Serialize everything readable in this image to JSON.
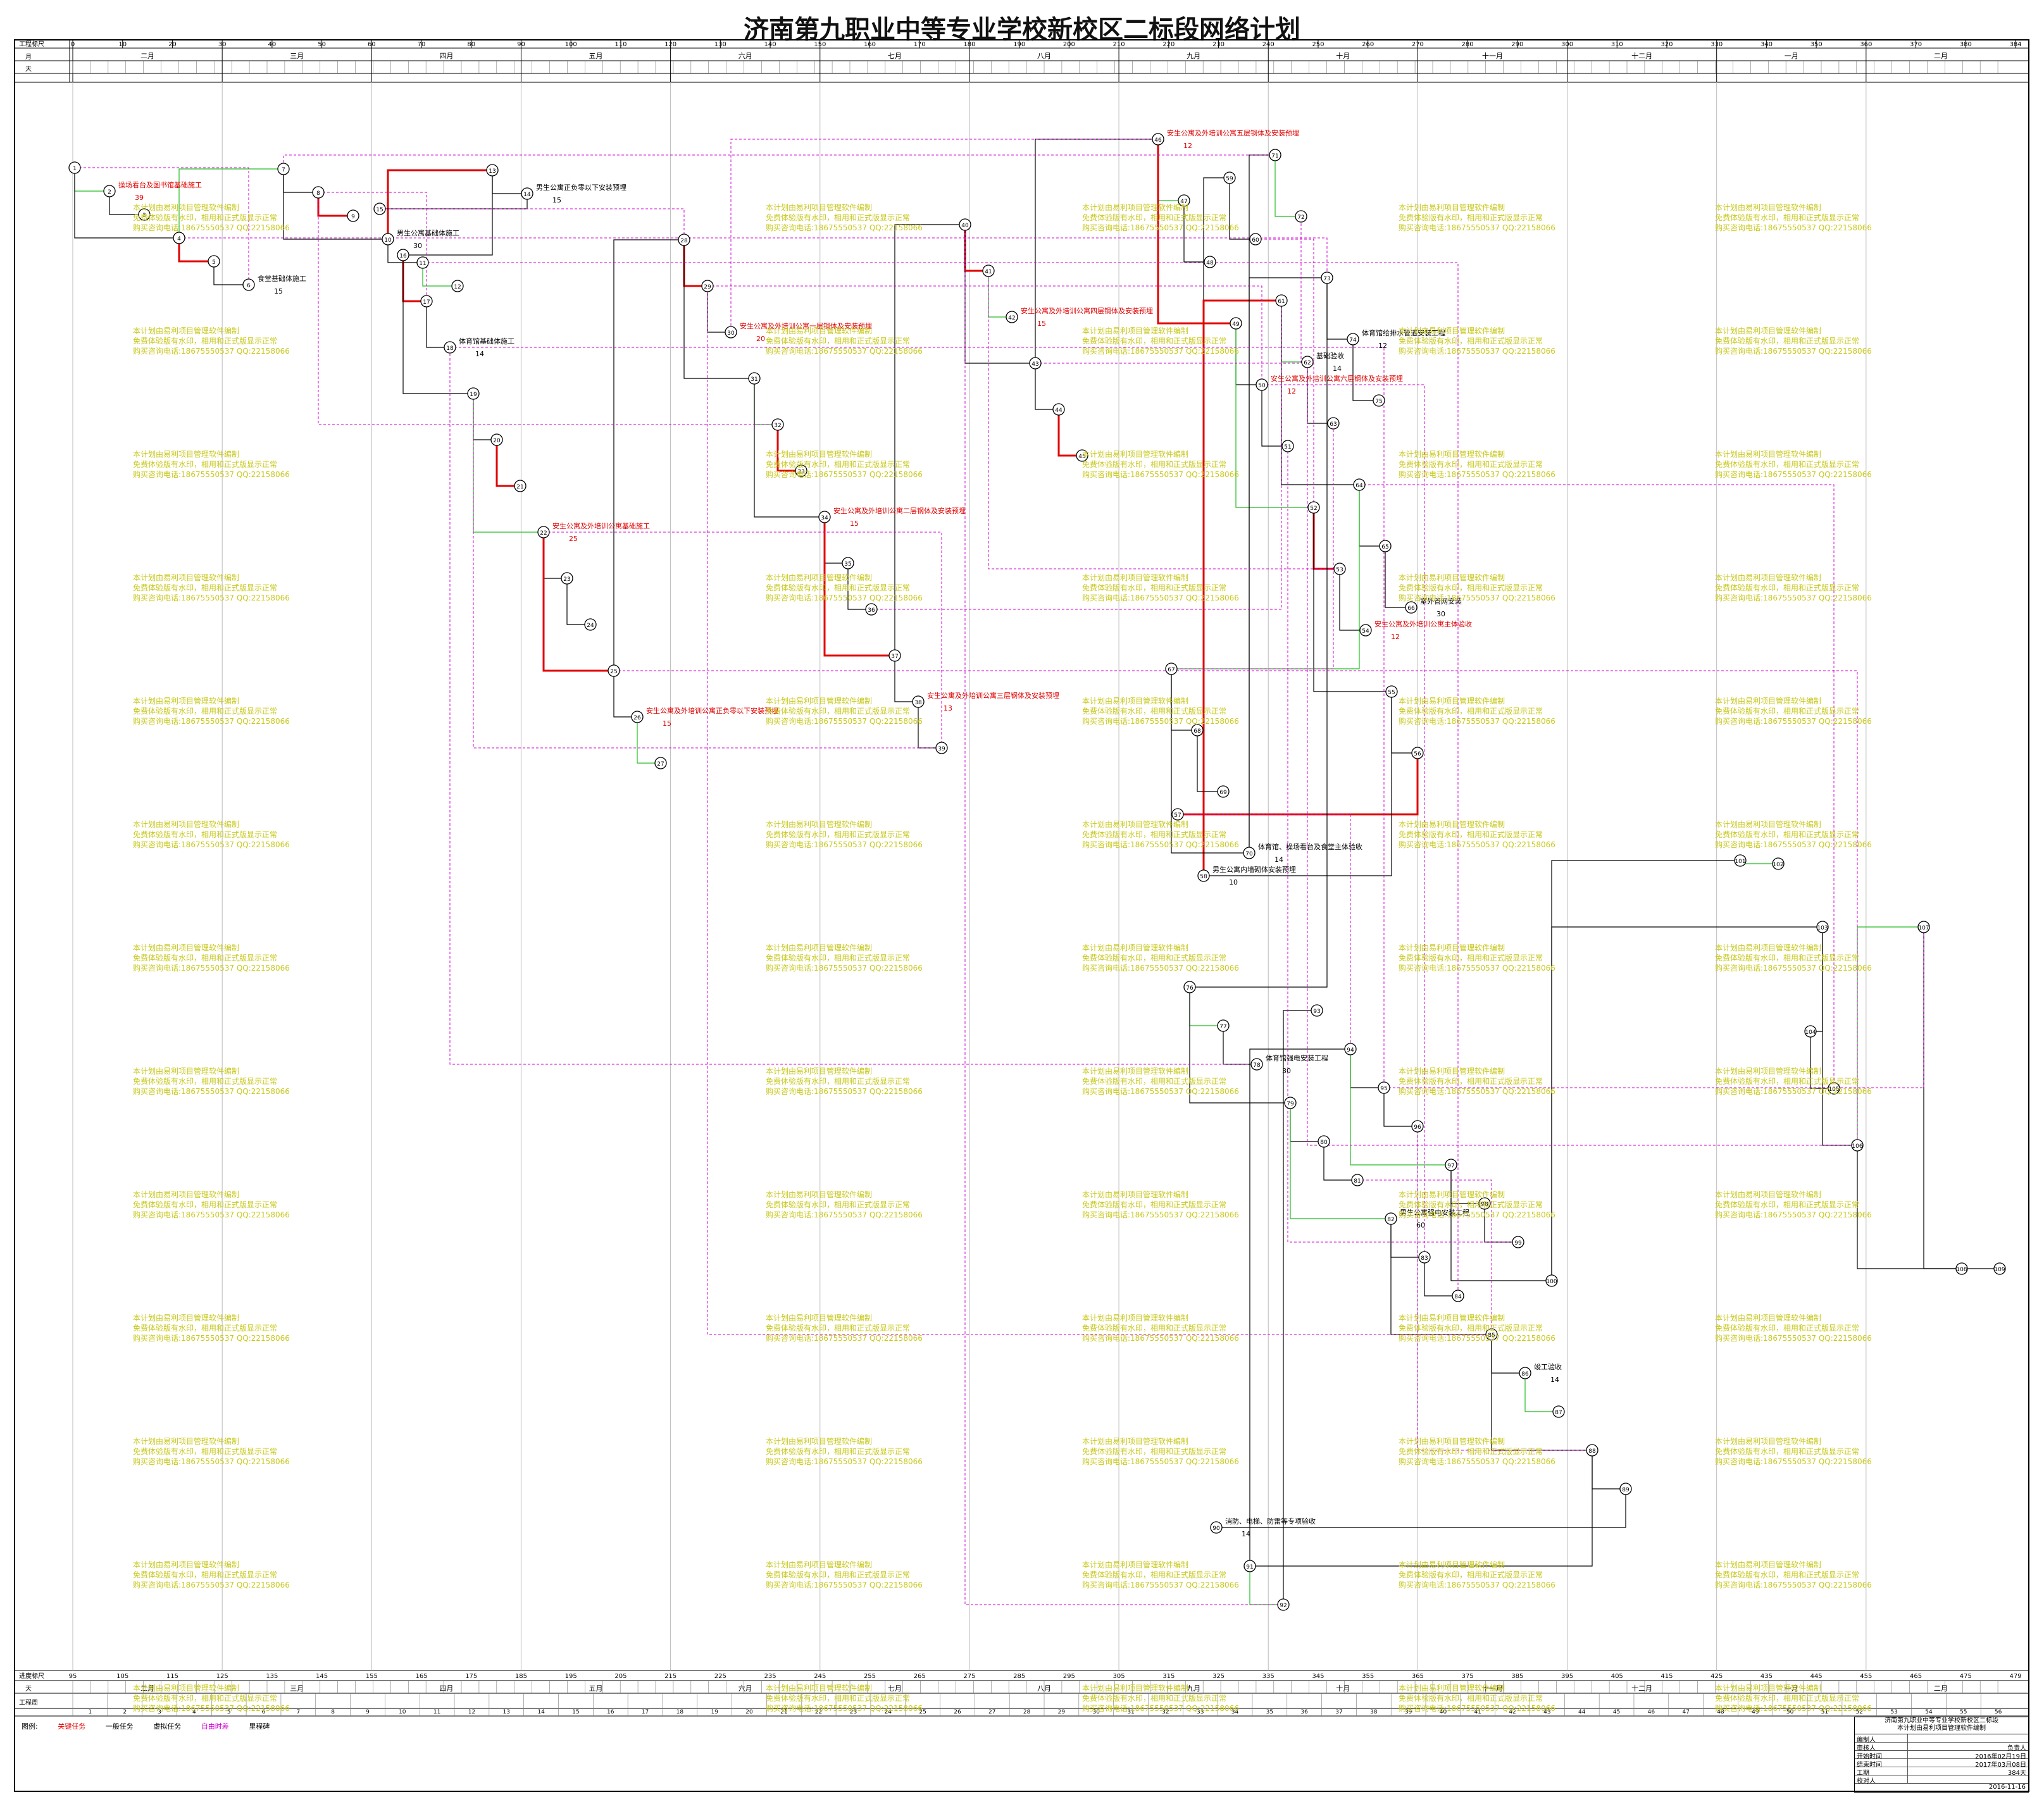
{
  "title": "济南第九职业中等专业学校新校区二标段网络计划",
  "scale": {
    "label_top": "工程标尺",
    "label_month": "月",
    "label_day": "天",
    "label_bottom": "进度标尺",
    "label_day_bottom": "天",
    "label_week": "工程周",
    "ticks_top": [
      "0",
      "10",
      "20",
      "30",
      "40",
      "50",
      "60",
      "70",
      "80",
      "90",
      "100",
      "110",
      "120",
      "130",
      "140",
      "150",
      "160",
      "170",
      "180",
      "190",
      "200",
      "210",
      "220",
      "230",
      "240",
      "250",
      "260",
      "270",
      "280",
      "290",
      "300",
      "310",
      "320",
      "330",
      "340",
      "350",
      "360",
      "370",
      "380",
      "384"
    ],
    "ticks_bottom": [
      "95",
      "105",
      "115",
      "125",
      "135",
      "145",
      "155",
      "165",
      "175",
      "185",
      "195",
      "205",
      "215",
      "225",
      "235",
      "245",
      "255",
      "265",
      "275",
      "285",
      "295",
      "305",
      "315",
      "325",
      "335",
      "345",
      "355",
      "365",
      "375",
      "385",
      "395",
      "405",
      "415",
      "425",
      "435",
      "445",
      "455",
      "465",
      "475",
      "479"
    ],
    "months": [
      "二月",
      "三月",
      "四月",
      "五月",
      "六月",
      "七月",
      "八月",
      "九月",
      "十月",
      "十一月",
      "十二月",
      "一月",
      "二月"
    ]
  },
  "nodes": [
    {
      "id": "1"
    },
    {
      "id": "2"
    },
    {
      "id": "3"
    },
    {
      "id": "4"
    },
    {
      "id": "5"
    },
    {
      "id": "6"
    },
    {
      "id": "7"
    },
    {
      "id": "8"
    },
    {
      "id": "9"
    },
    {
      "id": "10"
    },
    {
      "id": "11"
    },
    {
      "id": "12"
    },
    {
      "id": "13"
    },
    {
      "id": "14"
    },
    {
      "id": "15"
    },
    {
      "id": "16"
    },
    {
      "id": "17"
    },
    {
      "id": "18"
    },
    {
      "id": "19"
    },
    {
      "id": "20"
    },
    {
      "id": "21"
    },
    {
      "id": "22"
    },
    {
      "id": "23"
    },
    {
      "id": "24"
    },
    {
      "id": "25"
    },
    {
      "id": "26"
    },
    {
      "id": "27"
    },
    {
      "id": "28"
    },
    {
      "id": "29"
    },
    {
      "id": "30"
    },
    {
      "id": "31"
    },
    {
      "id": "32"
    },
    {
      "id": "33"
    },
    {
      "id": "34"
    },
    {
      "id": "35"
    },
    {
      "id": "36"
    },
    {
      "id": "37"
    },
    {
      "id": "38"
    },
    {
      "id": "39"
    },
    {
      "id": "40"
    },
    {
      "id": "41"
    },
    {
      "id": "42"
    },
    {
      "id": "43"
    },
    {
      "id": "44"
    },
    {
      "id": "45"
    },
    {
      "id": "46"
    },
    {
      "id": "47"
    },
    {
      "id": "48"
    },
    {
      "id": "49"
    },
    {
      "id": "50"
    },
    {
      "id": "51"
    },
    {
      "id": "52"
    },
    {
      "id": "53"
    },
    {
      "id": "54"
    },
    {
      "id": "55"
    },
    {
      "id": "56"
    },
    {
      "id": "57"
    },
    {
      "id": "58"
    },
    {
      "id": "59"
    },
    {
      "id": "60"
    },
    {
      "id": "61"
    },
    {
      "id": "62"
    },
    {
      "id": "63"
    },
    {
      "id": "64"
    },
    {
      "id": "65"
    },
    {
      "id": "66"
    },
    {
      "id": "67"
    },
    {
      "id": "68"
    },
    {
      "id": "69"
    },
    {
      "id": "70"
    },
    {
      "id": "71"
    },
    {
      "id": "72"
    },
    {
      "id": "73"
    },
    {
      "id": "74"
    },
    {
      "id": "75"
    },
    {
      "id": "76"
    },
    {
      "id": "77"
    },
    {
      "id": "78"
    },
    {
      "id": "79"
    },
    {
      "id": "80"
    },
    {
      "id": "81"
    },
    {
      "id": "82"
    },
    {
      "id": "83"
    },
    {
      "id": "84"
    },
    {
      "id": "85"
    },
    {
      "id": "86"
    },
    {
      "id": "87"
    },
    {
      "id": "88"
    },
    {
      "id": "89"
    },
    {
      "id": "90"
    },
    {
      "id": "91"
    },
    {
      "id": "92"
    },
    {
      "id": "93"
    },
    {
      "id": "94"
    },
    {
      "id": "95"
    },
    {
      "id": "96"
    },
    {
      "id": "97"
    },
    {
      "id": "98"
    },
    {
      "id": "99"
    },
    {
      "id": "100"
    },
    {
      "id": "101"
    },
    {
      "id": "102"
    },
    {
      "id": "103"
    },
    {
      "id": "104"
    },
    {
      "id": "105"
    },
    {
      "id": "106"
    },
    {
      "id": "107"
    },
    {
      "id": "108"
    },
    {
      "id": "109"
    }
  ],
  "tasks": [
    {
      "label": "操场看台及图书馆基础施工",
      "duration": "39",
      "critical": true
    },
    {
      "label": "食堂基础体施工",
      "duration": "15",
      "critical": false
    },
    {
      "label": "男生公寓基础体施工",
      "duration": "30",
      "critical": false
    },
    {
      "label": "男生公寓正负零以下安装预埋",
      "duration": "15",
      "critical": false
    },
    {
      "label": "体育馆基础体施工",
      "duration": "14",
      "critical": false
    },
    {
      "label": "安生公寓及外培训公寓基础施工",
      "duration": "25",
      "critical": true
    },
    {
      "label": "安生公寓及外培训公寓正负零以下安装预埋",
      "duration": "15",
      "critical": true
    },
    {
      "label": "安生公寓及外培训公寓一层钢体及安装预埋",
      "duration": "20",
      "critical": true
    },
    {
      "label": "安生公寓及外培训公寓二层钢体及安装预埋",
      "duration": "15",
      "critical": true
    },
    {
      "label": "安生公寓及外培训公寓三层钢体及安装预埋",
      "duration": "13",
      "critical": true
    },
    {
      "label": "安生公寓及外培训公寓四层钢体及安装预埋",
      "duration": "15",
      "critical": true
    },
    {
      "label": "安生公寓及外培训公寓五层钢体及安装预埋",
      "duration": "12",
      "critical": true
    },
    {
      "label": "安生公寓及外培训公寓六层钢体及安装预埋",
      "duration": "12",
      "critical": true
    },
    {
      "label": "安生公寓及外培训公寓主体验收",
      "duration": "12",
      "critical": true
    },
    {
      "label": "男生公寓内墙砌体安装预埋",
      "duration": "10",
      "critical": false
    },
    {
      "label": "基础验收",
      "duration": "14",
      "critical": false
    },
    {
      "label": "室外管网安装",
      "duration": "30",
      "critical": false
    },
    {
      "label": "体育馆、操场看台及食堂主体验收",
      "duration": "14",
      "critical": false
    },
    {
      "label": "体育馆给排水管道安装工程",
      "duration": "12",
      "critical": false
    },
    {
      "label": "体育馆强电安装工程",
      "duration": "30",
      "critical": false
    },
    {
      "label": "男生公寓强电安装工程",
      "duration": "60",
      "critical": false
    },
    {
      "label": "竣工验收",
      "duration": "14",
      "critical": false
    },
    {
      "label": "消防、电梯、防雷等专项验收",
      "duration": "14",
      "critical": false
    }
  ],
  "watermark": [
    "本计划由易利项目管理软件编制",
    "免费体验版有水印，相用和正式版显示正常",
    "购买咨询电话:18675550537 QQ:22158066"
  ],
  "legend": {
    "title": "图例:",
    "critical": "关键任务",
    "normal": "一般任务",
    "virtual": "虚拟任务",
    "free": "自由时差",
    "milestone": "里程碑"
  },
  "info": {
    "header_line1": "济南第九职业中等专业学校新校区二标段",
    "header_line2": "本计划由易利项目管理软件编制",
    "rows": [
      {
        "k": "编制人",
        "v": ""
      },
      {
        "k": "审核人",
        "v": "负责人"
      },
      {
        "k": "开始时间",
        "v": "2016年02月19日"
      },
      {
        "k": "结束时间",
        "v": "2017年03月08日"
      },
      {
        "k": "工期",
        "v": "384天"
      },
      {
        "k": "校对人",
        "v": ""
      }
    ],
    "date": "2016-11-16"
  }
}
